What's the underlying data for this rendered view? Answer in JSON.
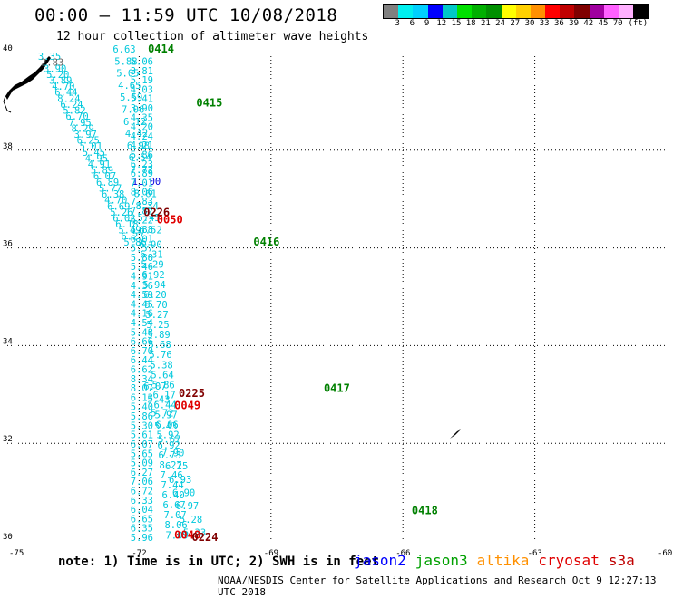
{
  "header": {
    "title": "00:00 – 11:59 UTC 10/08/2018",
    "subtitle": "12 hour collection of altimeter wave heights"
  },
  "colorbar": {
    "colors": [
      "#808080",
      "#00f0f0",
      "#00d0ff",
      "#0000ff",
      "#00c8c8",
      "#00e000",
      "#00b000",
      "#009000",
      "#ffff00",
      "#ffd000",
      "#ff9000",
      "#ff0000",
      "#c00000",
      "#800000",
      "#a000a0",
      "#ff60ff",
      "#ffb0ff",
      "#000000"
    ],
    "ticks": [
      "3",
      "6",
      "9",
      "12",
      "15",
      "18",
      "21",
      "24",
      "27",
      "30",
      "33",
      "36",
      "39",
      "42",
      "45",
      "70",
      "(ft)"
    ]
  },
  "axes": {
    "lon_labels": [
      "-75",
      "-72",
      "-69",
      "-66",
      "-63",
      "-60"
    ],
    "lat_labels": [
      "40",
      "38",
      "36",
      "34",
      "32",
      "30"
    ]
  },
  "footer": {
    "note": "note: 1) Time is in UTC; 2) SWH is in feet",
    "credit": "NOAA/NESDIS Center for Satellite Applications and Research   Oct  9 12:27:13 UTC 2018",
    "legend": [
      {
        "label": "jason2",
        "color": "#0000ff"
      },
      {
        "label": "jason3",
        "color": "#00a000"
      },
      {
        "label": "altika",
        "color": "#ff9000"
      },
      {
        "label": "cryosat",
        "color": "#e00000"
      },
      {
        "label": "s3a",
        "color": "#c00000"
      }
    ]
  },
  "chart_data": {
    "type": "map",
    "lon_range": [
      -75,
      -60
    ],
    "lat_range": [
      30,
      40
    ],
    "grid": true,
    "time_labels": [
      {
        "text": "0414",
        "lon": -71.8,
        "lat": 40.0,
        "color": "#008000"
      },
      {
        "text": "0415",
        "lon": -70.7,
        "lat": 38.9,
        "color": "#008000"
      },
      {
        "text": "0416",
        "lon": -69.4,
        "lat": 36.05,
        "color": "#008000"
      },
      {
        "text": "0417",
        "lon": -67.8,
        "lat": 33.05,
        "color": "#008000"
      },
      {
        "text": "0418",
        "lon": -65.8,
        "lat": 30.55,
        "color": "#008000"
      },
      {
        "text": "0226",
        "lon": -71.9,
        "lat": 36.65,
        "color": "#800000"
      },
      {
        "text": "0050",
        "lon": -71.6,
        "lat": 36.5,
        "color": "#e00000"
      },
      {
        "text": "0225",
        "lon": -71.1,
        "lat": 32.95,
        "color": "#800000"
      },
      {
        "text": "0049",
        "lon": -71.2,
        "lat": 32.7,
        "color": "#e00000"
      },
      {
        "text": "0048",
        "lon": -71.2,
        "lat": 30.05,
        "color": "#e00000"
      },
      {
        "text": "0224",
        "lon": -70.8,
        "lat": 30.0,
        "color": "#800000"
      }
    ],
    "tracks": [
      {
        "name": "track-a",
        "color": "#00c8dc",
        "start": [
          -74.3,
          39.85
        ],
        "end": [
          -72.35,
          36.05
        ],
        "values": [
          "3.35",
          "2.83",
          "3.90",
          "5.20",
          "3.89",
          "4.70",
          "6.44",
          "8.24",
          "6.24",
          "5.82",
          "6.70",
          "7.95",
          "8.29",
          "3.97",
          "6.25",
          "5.01",
          "5.45",
          "4.95",
          "4.91",
          "5.89",
          "6.07",
          "6.89",
          "5.77",
          "6.38",
          "4.70",
          "6.69",
          "5.26",
          "6.02",
          "6.18",
          "5.49",
          "6.27",
          "5.86"
        ]
      },
      {
        "name": "track-b",
        "color": "#00c8dc",
        "start": [
          -72.6,
          40.0
        ],
        "end": [
          -72.0,
          36.3
        ],
        "values": [
          "6.63",
          "5.88",
          "5.05",
          "4.65",
          "5.59",
          "7.06",
          "6.12",
          "4.42",
          "6.98",
          "6.54",
          "7.72",
          "11.00",
          "8.61",
          "8.34",
          "5.45",
          "6.52"
        ]
      },
      {
        "name": "track-c",
        "color": "#00c8dc",
        "start": [
          -72.2,
          39.75
        ],
        "end": [
          -72.2,
          30.0
        ],
        "values": [
          "5.06",
          "3.81",
          "5.19",
          "4.03",
          "5.41",
          "3.90",
          "4.35",
          "4.20",
          "4.24",
          "4.21",
          "5.86",
          "6.23",
          "6.89",
          "7.01",
          "8.06",
          "7.83",
          "7.82",
          "6.22",
          "5.88",
          "6.01",
          "5.57",
          "5.88",
          "5.46",
          "4.91",
          "4.36",
          "4.59",
          "4.45",
          "4.16",
          "4.54",
          "5.48",
          "6.66",
          "6.70",
          "6.44",
          "6.62",
          "8.34",
          "8.07",
          "6.13",
          "5.40",
          "5.86",
          "5.30",
          "5.61",
          "6.07",
          "5.65",
          "5.09",
          "6.27",
          "7.06",
          "6.72",
          "6.33",
          "6.04",
          "6.65",
          "6.35",
          "5.96"
        ]
      },
      {
        "name": "track-d",
        "color": "#00c8dc",
        "start": [
          -72.0,
          36.0
        ],
        "end": [
          -71.4,
          30.05
        ],
        "values": [
          "6.90",
          "6.31",
          "5.29",
          "6.92",
          "5.94",
          "6.20",
          "5.70",
          "5.27",
          "5.25",
          "5.89",
          "5.68",
          "5.76",
          "5.38",
          "5.64",
          "5.86",
          "6.17",
          "6.44",
          "5.97",
          "6.06",
          "5.92",
          "6.92",
          "6.73",
          "8.27",
          "7.46",
          "7.44",
          "6.40",
          "6.67",
          "7.07",
          "8.06",
          "7.09"
        ]
      },
      {
        "name": "track-e",
        "color": "#00c8dc",
        "start": [
          -71.9,
          33.1
        ],
        "end": [
          -71.0,
          30.1
        ],
        "values": [
          "6.07",
          "5.43",
          "5.72",
          "5.43",
          "5.67",
          "7.90",
          "6.25",
          "6.93",
          "6.90",
          "6.97",
          "5.28",
          "5.33"
        ]
      }
    ]
  }
}
